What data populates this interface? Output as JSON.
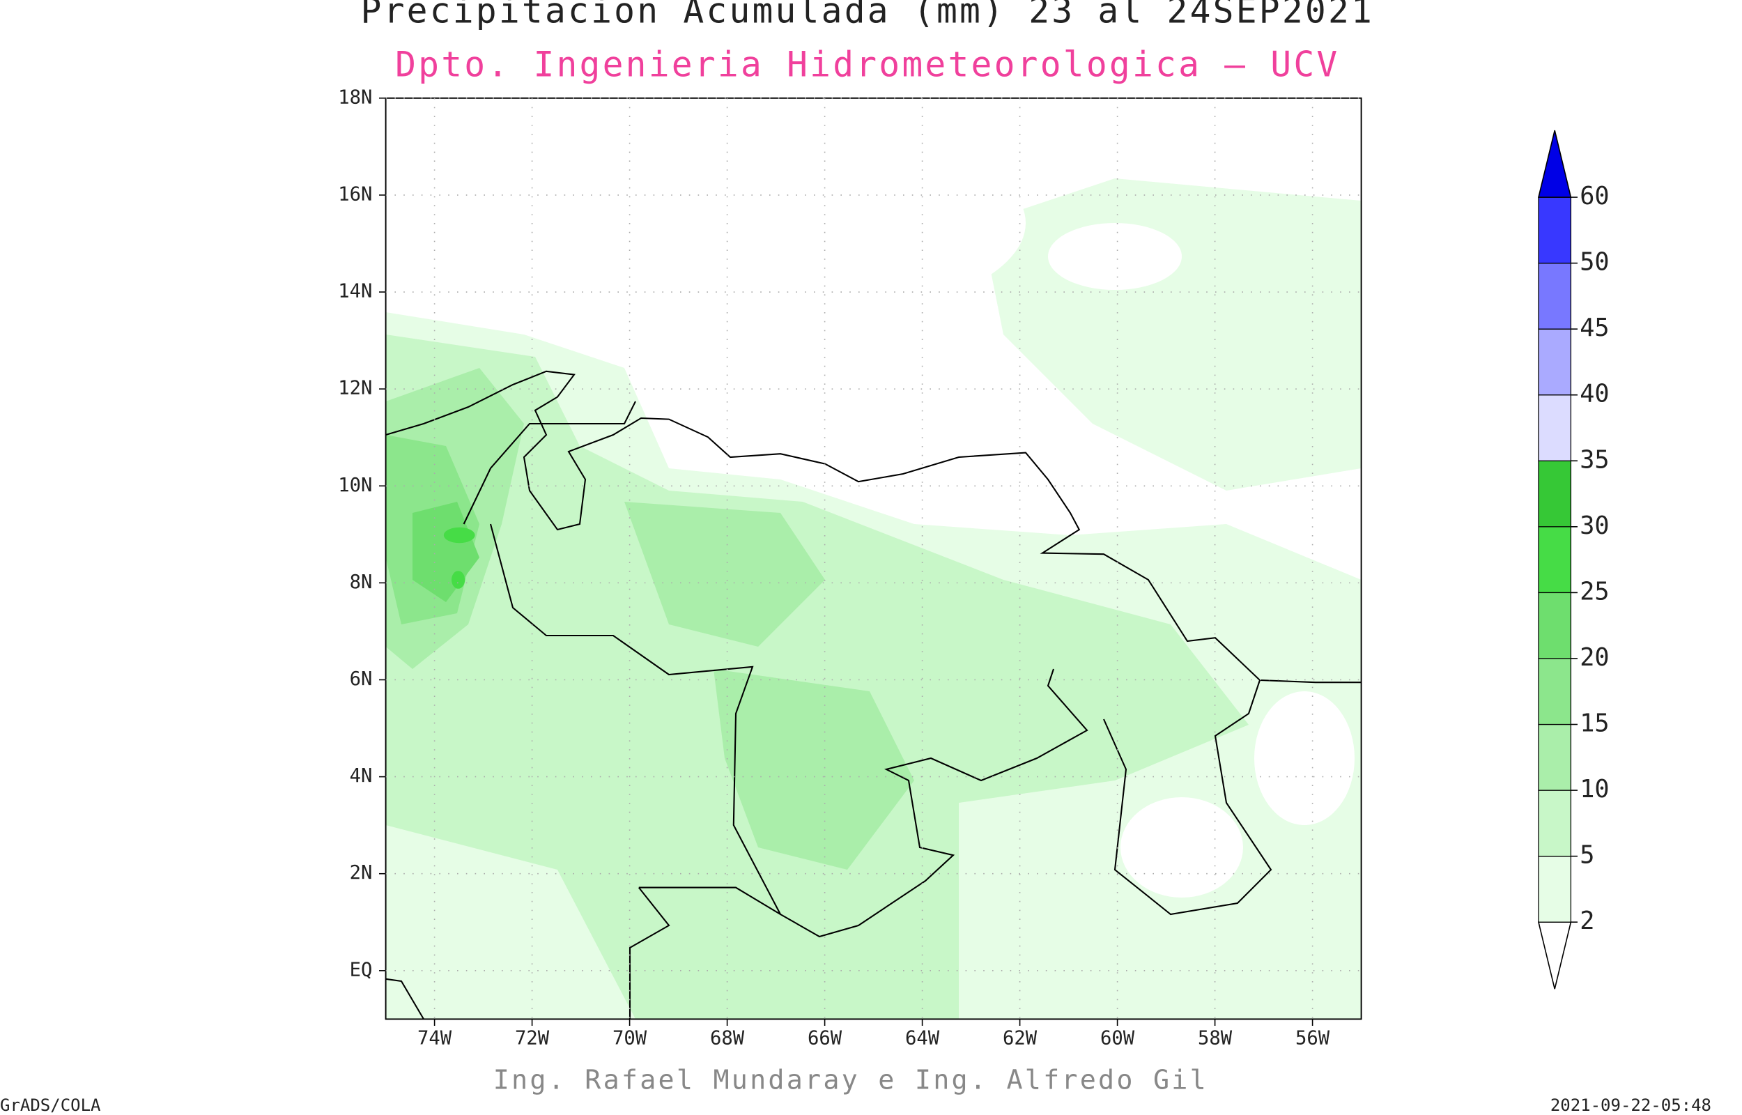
{
  "title": "Precipitacion Acumulada (mm) 23 al 24SEP2021",
  "subtitle": "Dpto. Ingenieria Hidrometeorologica — UCV",
  "credits": "Ing. Rafael Mundaray e Ing. Alfredo Gil",
  "footer_left": "GrADS/COLA",
  "footer_right": "2021-09-22-05:48",
  "map": {
    "xlim": [
      -75,
      -55
    ],
    "ylim": [
      -1,
      18
    ],
    "xticks": [
      {
        "value": -74,
        "label": "74W"
      },
      {
        "value": -72,
        "label": "72W"
      },
      {
        "value": -70,
        "label": "70W"
      },
      {
        "value": -68,
        "label": "68W"
      },
      {
        "value": -66,
        "label": "66W"
      },
      {
        "value": -64,
        "label": "64W"
      },
      {
        "value": -62,
        "label": "62W"
      },
      {
        "value": -60,
        "label": "60W"
      },
      {
        "value": -58,
        "label": "58W"
      },
      {
        "value": -56,
        "label": "56W"
      }
    ],
    "yticks": [
      {
        "value": 0,
        "label": "EQ"
      },
      {
        "value": 2,
        "label": "2N"
      },
      {
        "value": 4,
        "label": "4N"
      },
      {
        "value": 6,
        "label": "6N"
      },
      {
        "value": 8,
        "label": "8N"
      },
      {
        "value": 10,
        "label": "10N"
      },
      {
        "value": 12,
        "label": "12N"
      },
      {
        "value": 14,
        "label": "14N"
      },
      {
        "value": 16,
        "label": "16N"
      },
      {
        "value": 18,
        "label": "18N"
      }
    ]
  },
  "colorbar": {
    "levels": [
      2,
      5,
      10,
      15,
      20,
      25,
      30,
      35,
      40,
      45,
      50,
      60
    ],
    "colors": [
      "#ffffff",
      "#e6fde6",
      "#c8f7c8",
      "#aaeeaa",
      "#8ce68c",
      "#6ede6e",
      "#46dc46",
      "#36c836",
      "#dcdcff",
      "#aaaaff",
      "#7878ff",
      "#3838ff",
      "#0000e6"
    ]
  }
}
